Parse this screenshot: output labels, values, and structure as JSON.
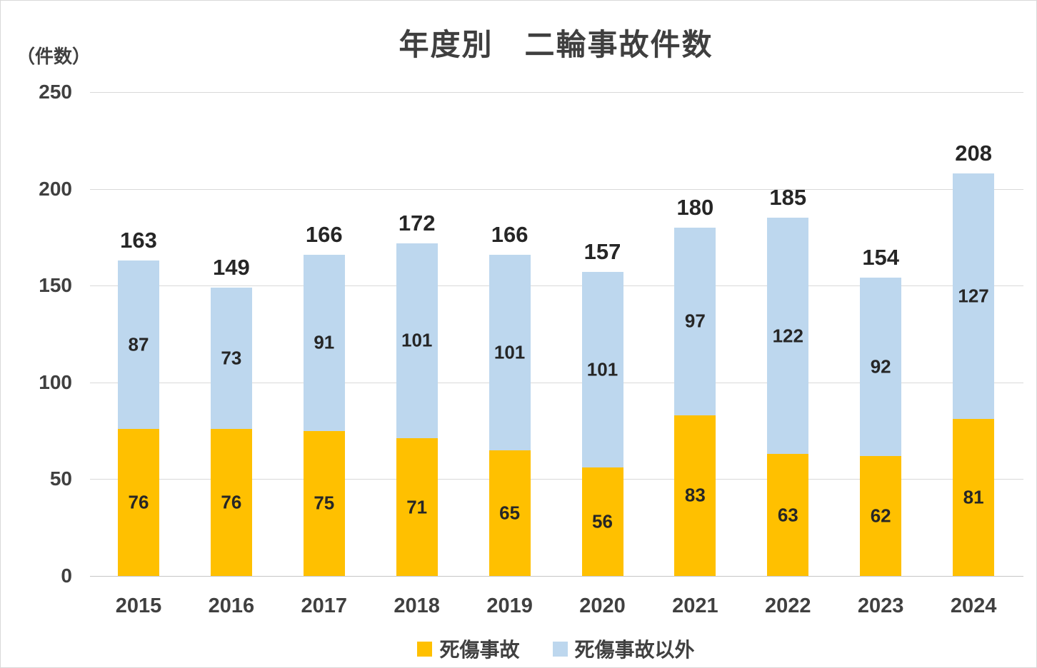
{
  "title": "年度別　二輪事故件数",
  "y_axis_unit": "（件数）",
  "chart_data": {
    "type": "bar",
    "stacked": true,
    "title": "年度別　二輪事故件数",
    "ylabel": "（件数）",
    "xlabel": "",
    "categories": [
      "2015",
      "2016",
      "2017",
      "2018",
      "2019",
      "2020",
      "2021",
      "2022",
      "2023",
      "2024"
    ],
    "series": [
      {
        "name": "死傷事故",
        "color": "#FFC000",
        "values": [
          76,
          76,
          75,
          71,
          65,
          56,
          83,
          63,
          62,
          81
        ]
      },
      {
        "name": "死傷事故以外",
        "color": "#BDD7EE",
        "values": [
          87,
          73,
          91,
          101,
          101,
          101,
          97,
          122,
          92,
          127
        ]
      }
    ],
    "totals": [
      163,
      149,
      166,
      172,
      166,
      157,
      180,
      185,
      154,
      208
    ],
    "y_ticks": [
      0,
      50,
      100,
      150,
      200,
      250
    ],
    "ylim": [
      0,
      250
    ],
    "grid": true,
    "legend_position": "bottom"
  },
  "legend": {
    "items": [
      {
        "label": "死傷事故",
        "color": "#FFC000"
      },
      {
        "label": "死傷事故以外",
        "color": "#BDD7EE"
      }
    ]
  },
  "colors": {
    "grid": "#d9d9d9",
    "axis_text": "#404040",
    "data_label": "#262626"
  }
}
